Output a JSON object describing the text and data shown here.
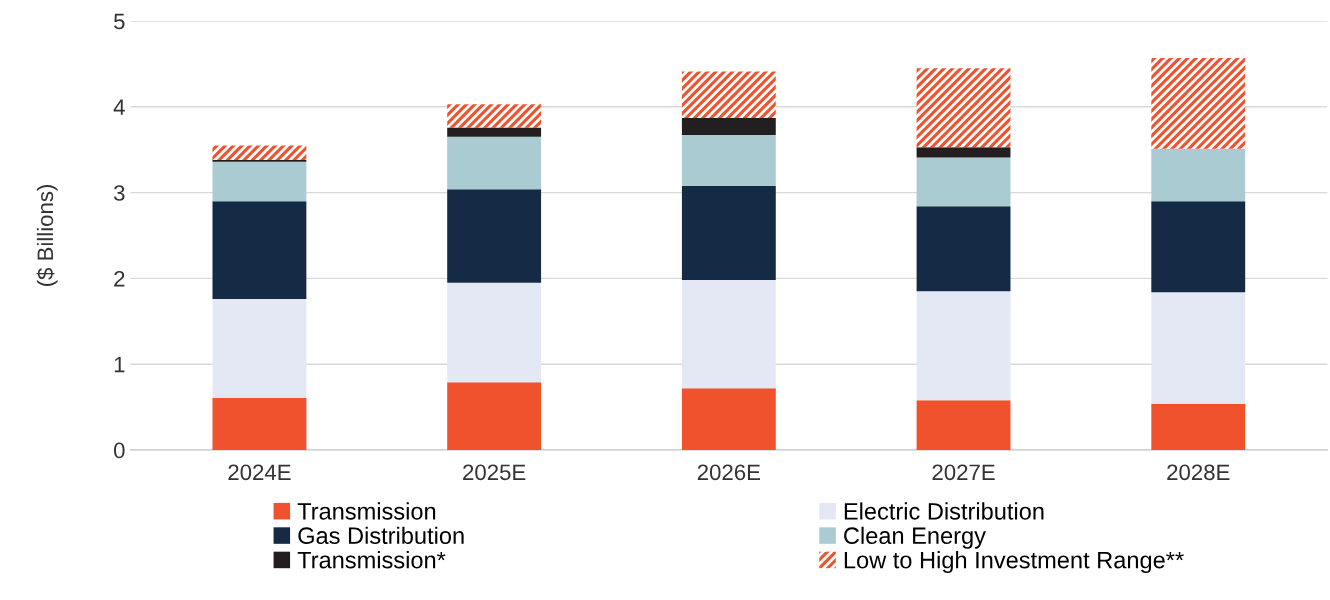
{
  "chart_data": {
    "type": "bar",
    "stacked": true,
    "ylabel": "($ Billions)",
    "categories": [
      "2024E",
      "2025E",
      "2026E",
      "2027E",
      "2028E"
    ],
    "series": [
      {
        "name": "Transmission",
        "color": "#f0522d",
        "values": [
          0.61,
          0.79,
          0.72,
          0.58,
          0.54
        ]
      },
      {
        "name": "Electric Distribution",
        "color": "#e3e8f4",
        "values": [
          1.15,
          1.16,
          1.26,
          1.27,
          1.3
        ]
      },
      {
        "name": "Gas Distribution",
        "color": "#152b45",
        "values": [
          1.14,
          1.09,
          1.1,
          0.99,
          1.06
        ]
      },
      {
        "name": "Clean Energy",
        "color": "#a9cbd1",
        "values": [
          0.46,
          0.61,
          0.59,
          0.57,
          0.61
        ]
      },
      {
        "name": "Transmission*",
        "color": "#231f20",
        "values": [
          0.02,
          0.11,
          0.2,
          0.12,
          0
        ]
      },
      {
        "name": "Low to High Investment Range**",
        "color": "#f0522d",
        "values": [
          0.17,
          0.27,
          0.54,
          0.92,
          1.06
        ]
      }
    ],
    "ylim": [
      0,
      5
    ],
    "yticks": [
      0,
      1,
      2,
      3,
      4,
      5
    ],
    "grid": "y",
    "legend": "bottom"
  }
}
